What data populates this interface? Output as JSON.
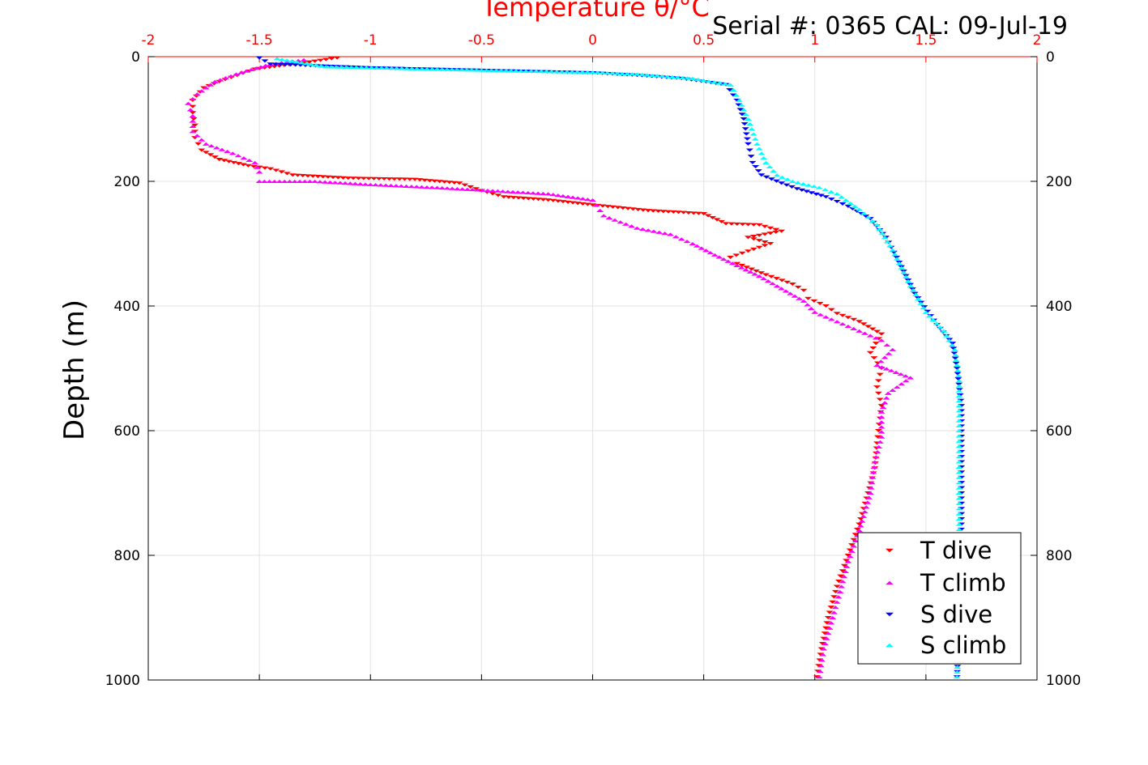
{
  "chart_data": {
    "type": "scatter",
    "title": "Serial #: 0365  CAL: 09-Jul-19",
    "xlabel": "Temperature θ/°C",
    "ylabel": "Depth (m)",
    "xlim": [
      -2,
      2
    ],
    "ylim": [
      0,
      1000
    ],
    "y_reversed": true,
    "grid": true,
    "legend_position": "bottom-right",
    "x_ticks": [
      "-2",
      "-1.5",
      "-1",
      "-0.5",
      "0",
      "0.5",
      "1",
      "1.5",
      "2"
    ],
    "y_ticks": [
      "0",
      "200",
      "400",
      "600",
      "800",
      "1000"
    ],
    "x_tick_values": [
      -2,
      -1.5,
      -1,
      -0.5,
      0,
      0.5,
      1,
      1.5,
      2
    ],
    "y_tick_values": [
      0,
      200,
      400,
      600,
      800,
      1000
    ],
    "series": [
      {
        "name": "T dive",
        "marker": "triangle-down",
        "color": "#ff0000",
        "points": [
          [
            -1.15,
            2
          ],
          [
            -1.3,
            10
          ],
          [
            -1.52,
            20
          ],
          [
            -1.6,
            30
          ],
          [
            -1.68,
            40
          ],
          [
            -1.75,
            50
          ],
          [
            -1.8,
            70
          ],
          [
            -1.8,
            90
          ],
          [
            -1.79,
            110
          ],
          [
            -1.79,
            130
          ],
          [
            -1.76,
            150
          ],
          [
            -1.68,
            165
          ],
          [
            -1.55,
            175
          ],
          [
            -1.45,
            180
          ],
          [
            -1.35,
            190
          ],
          [
            -1.1,
            195
          ],
          [
            -0.8,
            197
          ],
          [
            -0.6,
            203
          ],
          [
            -0.5,
            215
          ],
          [
            -0.4,
            225
          ],
          [
            -0.2,
            230
          ],
          [
            0,
            238
          ],
          [
            0.25,
            247
          ],
          [
            0.5,
            252
          ],
          [
            0.6,
            268
          ],
          [
            0.75,
            270
          ],
          [
            0.85,
            280
          ],
          [
            0.7,
            290
          ],
          [
            0.8,
            300
          ],
          [
            0.7,
            312
          ],
          [
            0.62,
            322
          ],
          [
            0.65,
            332
          ],
          [
            0.78,
            350
          ],
          [
            0.9,
            365
          ],
          [
            0.95,
            375
          ],
          [
            0.97,
            388
          ],
          [
            1.05,
            400
          ],
          [
            1.1,
            412
          ],
          [
            1.2,
            425
          ],
          [
            1.3,
            445
          ],
          [
            1.25,
            475
          ],
          [
            1.3,
            500
          ],
          [
            1.28,
            530
          ],
          [
            1.3,
            560
          ],
          [
            1.29,
            590
          ],
          [
            1.28,
            620
          ],
          [
            1.27,
            660
          ],
          [
            1.24,
            700
          ],
          [
            1.2,
            750
          ],
          [
            1.15,
            800
          ],
          [
            1.1,
            850
          ],
          [
            1.06,
            900
          ],
          [
            1.03,
            950
          ],
          [
            1.01,
            995
          ]
        ]
      },
      {
        "name": "T climb",
        "marker": "triangle-up",
        "color": "#ff00ff",
        "points": [
          [
            -1.3,
            5
          ],
          [
            -1.45,
            12
          ],
          [
            -1.58,
            25
          ],
          [
            -1.7,
            40
          ],
          [
            -1.78,
            60
          ],
          [
            -1.82,
            75
          ],
          [
            -1.8,
            95
          ],
          [
            -1.8,
            120
          ],
          [
            -1.74,
            140
          ],
          [
            -1.62,
            155
          ],
          [
            -1.52,
            170
          ],
          [
            -1.5,
            185
          ],
          [
            -1.5,
            200
          ],
          [
            -1.25,
            200
          ],
          [
            -1,
            205
          ],
          [
            -0.7,
            210
          ],
          [
            -0.45,
            215
          ],
          [
            -0.2,
            220
          ],
          [
            0,
            230
          ],
          [
            0.05,
            255
          ],
          [
            0.1,
            262
          ],
          [
            0.2,
            275
          ],
          [
            0.35,
            285
          ],
          [
            0.45,
            300
          ],
          [
            0.55,
            318
          ],
          [
            0.65,
            335
          ],
          [
            0.75,
            352
          ],
          [
            0.85,
            372
          ],
          [
            0.95,
            392
          ],
          [
            1.0,
            410
          ],
          [
            1.1,
            425
          ],
          [
            1.2,
            440
          ],
          [
            1.3,
            455
          ],
          [
            1.35,
            470
          ],
          [
            1.28,
            495
          ],
          [
            1.43,
            515
          ],
          [
            1.33,
            540
          ],
          [
            1.3,
            570
          ],
          [
            1.3,
            610
          ],
          [
            1.27,
            650
          ],
          [
            1.25,
            700
          ],
          [
            1.2,
            760
          ],
          [
            1.15,
            810
          ],
          [
            1.12,
            850
          ],
          [
            1.08,
            900
          ],
          [
            1.04,
            950
          ],
          [
            1.02,
            995
          ]
        ]
      },
      {
        "name": "S dive",
        "marker": "triangle-down",
        "color": "#0000ff",
        "points": [
          [
            -1.5,
            2
          ],
          [
            -1.45,
            12
          ],
          [
            -1.0,
            18
          ],
          [
            -0.5,
            22
          ],
          [
            0,
            26
          ],
          [
            0.2,
            30
          ],
          [
            0.4,
            35
          ],
          [
            0.6,
            45
          ],
          [
            0.65,
            70
          ],
          [
            0.68,
            100
          ],
          [
            0.7,
            140
          ],
          [
            0.72,
            170
          ],
          [
            0.76,
            190
          ],
          [
            0.85,
            203
          ],
          [
            0.92,
            212
          ],
          [
            1.05,
            225
          ],
          [
            1.15,
            240
          ],
          [
            1.25,
            260
          ],
          [
            1.32,
            290
          ],
          [
            1.38,
            330
          ],
          [
            1.45,
            380
          ],
          [
            1.55,
            430
          ],
          [
            1.62,
            460
          ],
          [
            1.64,
            500
          ],
          [
            1.66,
            560
          ],
          [
            1.66,
            650
          ],
          [
            1.66,
            750
          ],
          [
            1.65,
            850
          ],
          [
            1.65,
            920
          ],
          [
            1.64,
            995
          ]
        ]
      },
      {
        "name": "S climb",
        "marker": "triangle-up",
        "color": "#00ffff",
        "points": [
          [
            -1.42,
            3
          ],
          [
            -1.2,
            16
          ],
          [
            -0.7,
            20
          ],
          [
            -0.3,
            23
          ],
          [
            0,
            25
          ],
          [
            0.2,
            28
          ],
          [
            0.45,
            35
          ],
          [
            0.62,
            45
          ],
          [
            0.66,
            70
          ],
          [
            0.7,
            100
          ],
          [
            0.74,
            140
          ],
          [
            0.78,
            170
          ],
          [
            0.83,
            190
          ],
          [
            0.9,
            200
          ],
          [
            1.02,
            210
          ],
          [
            1.1,
            220
          ],
          [
            1.2,
            245
          ],
          [
            1.28,
            270
          ],
          [
            1.35,
            310
          ],
          [
            1.42,
            360
          ],
          [
            1.5,
            410
          ],
          [
            1.58,
            440
          ],
          [
            1.63,
            470
          ],
          [
            1.65,
            520
          ],
          [
            1.65,
            600
          ],
          [
            1.65,
            700
          ],
          [
            1.65,
            800
          ],
          [
            1.65,
            900
          ],
          [
            1.64,
            995
          ]
        ]
      }
    ]
  }
}
